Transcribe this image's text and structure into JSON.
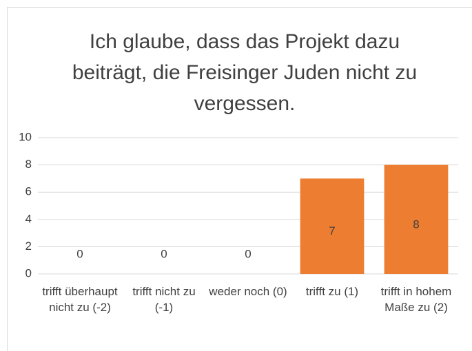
{
  "chart_data": {
    "type": "bar",
    "title": "Ich glaube, dass das Projekt dazu beiträgt, die Freisinger Juden nicht zu vergessen.",
    "categories": [
      "trifft überhaupt nicht zu (-2)",
      "trifft nicht zu (-1)",
      "weder noch (0)",
      "trifft zu (1)",
      "trifft in hohem Maße zu (2)"
    ],
    "values": [
      0,
      0,
      0,
      7,
      8
    ],
    "color": "#ed7d31",
    "ylim": [
      0,
      10
    ],
    "yticks": [
      0,
      2,
      4,
      6,
      8,
      10
    ],
    "grid": true
  }
}
